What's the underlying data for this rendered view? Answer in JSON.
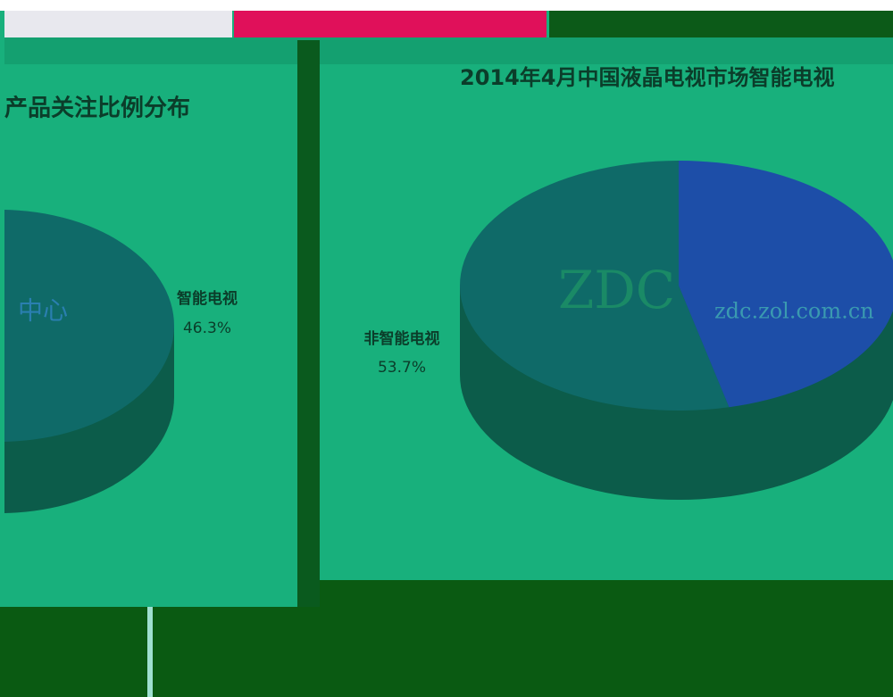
{
  "chart_data": [
    {
      "type": "pie",
      "title": "产品关注比例分布",
      "categories": [
        "智能电视",
        null
      ],
      "values": [
        46.3,
        53.7
      ],
      "value_labels": [
        "46.3%",
        null
      ],
      "colors": [
        "#1d4ea8",
        "#0f6a68"
      ],
      "annotations": [
        "中心"
      ]
    },
    {
      "type": "pie",
      "title": "2014年4月中国液晶电视市场智能电视",
      "categories": [
        "非智能电视",
        null
      ],
      "values": [
        53.7,
        46.3
      ],
      "value_labels": [
        "53.7%",
        null
      ],
      "colors": [
        "#0f6a68",
        "#1d4ea8"
      ],
      "annotations": [
        "ZDC",
        "zdc.zol.com.cn"
      ]
    }
  ]
}
